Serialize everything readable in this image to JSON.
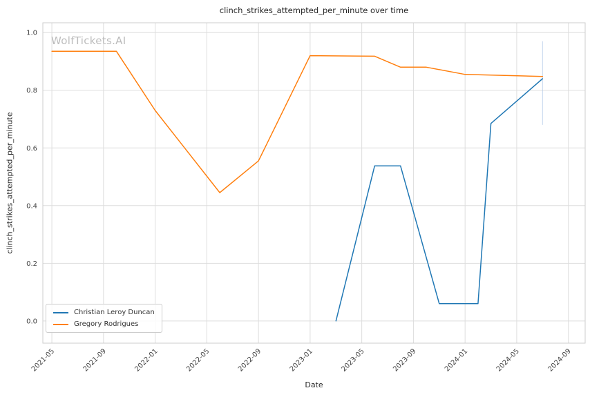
{
  "watermark": "WolfTickets.AI",
  "chart_data": {
    "type": "line",
    "title": "clinch_strikes_attempted_per_minute over time",
    "xlabel": "Date",
    "ylabel": "clinch_strikes_attempted_per_minute",
    "grid": true,
    "legend_position": "lower left",
    "x_ticks": [
      "2021-05",
      "2021-09",
      "2022-01",
      "2022-05",
      "2022-09",
      "2023-01",
      "2023-05",
      "2023-09",
      "2024-01",
      "2024-05",
      "2024-09"
    ],
    "y_ticks": [
      0.0,
      0.2,
      0.4,
      0.6,
      0.8,
      1.0
    ],
    "xlim_t": [
      2021.275,
      2024.775
    ],
    "ylim": [
      -0.077,
      1.034
    ],
    "series": [
      {
        "name": "Christian Leroy Duncan",
        "color": "#1f77b4",
        "points": [
          [
            "2023-03",
            0.0
          ],
          [
            "2023-06",
            0.538
          ],
          [
            "2023-08",
            0.538
          ],
          [
            "2023-11",
            0.06
          ],
          [
            "2024-02",
            0.06
          ],
          [
            "2024-03",
            0.685
          ],
          [
            "2024-07",
            0.84
          ]
        ]
      },
      {
        "name": "Gregory Rodrigues",
        "color": "#ff7f0e",
        "points": [
          [
            "2021-05",
            0.935
          ],
          [
            "2021-10",
            0.935
          ],
          [
            "2022-01",
            0.73
          ],
          [
            "2022-06",
            0.445
          ],
          [
            "2022-09",
            0.555
          ],
          [
            "2023-01",
            0.92
          ],
          [
            "2023-06",
            0.918
          ],
          [
            "2023-08",
            0.88
          ],
          [
            "2023-10",
            0.88
          ],
          [
            "2024-01",
            0.855
          ],
          [
            "2024-07",
            0.848
          ]
        ]
      }
    ],
    "annotation_line": {
      "x": "2024-07",
      "y1": 0.68,
      "y2": 0.97,
      "color": "#aec7e8"
    }
  }
}
